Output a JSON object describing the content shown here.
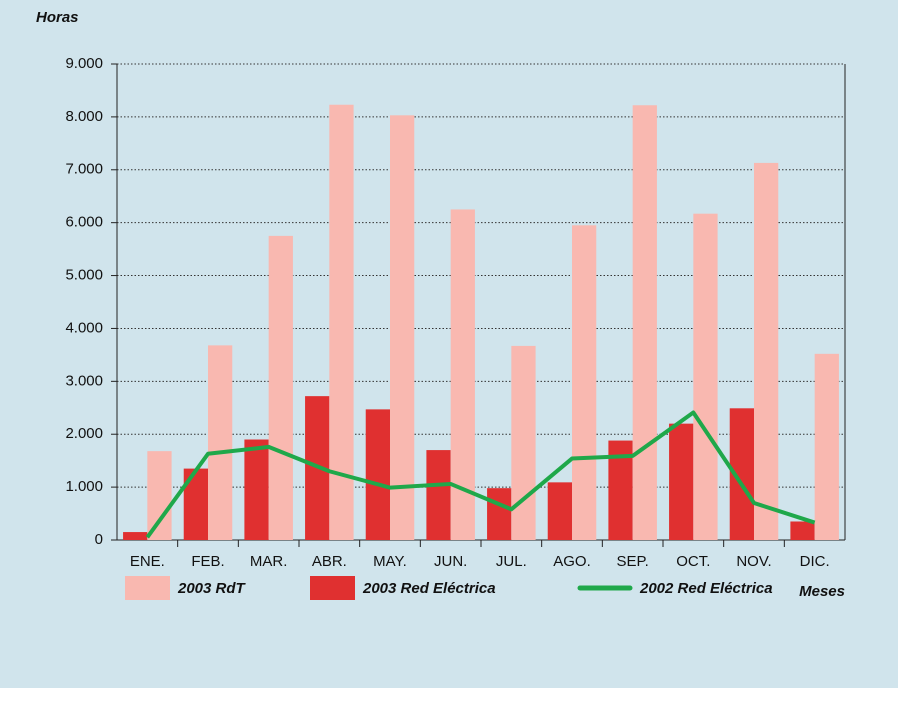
{
  "chart_data": {
    "type": "bar_line",
    "y_label": "Horas",
    "x_label": "Meses",
    "categories": [
      "ENE.",
      "FEB.",
      "MAR.",
      "ABR.",
      "MAY.",
      "JUN.",
      "JUL.",
      "AGO.",
      "SEP.",
      "OCT.",
      "NOV.",
      "DIC."
    ],
    "series": [
      {
        "name": "2003 Red Eléctrica",
        "color": "#e03030",
        "kind": "bar",
        "values": [
          150,
          1350,
          1900,
          2720,
          2470,
          1700,
          980,
          1090,
          1880,
          2200,
          2490,
          350
        ]
      },
      {
        "name": "2003 RdT",
        "color": "#f9b8b0",
        "kind": "bar",
        "values": [
          1680,
          3680,
          5750,
          8230,
          8030,
          6250,
          3670,
          5950,
          8220,
          6170,
          7130,
          3520
        ]
      },
      {
        "name": "2002 Red Eléctrica",
        "color": "#1fa84a",
        "kind": "line",
        "values": [
          50,
          1630,
          1760,
          1300,
          990,
          1060,
          580,
          1540,
          1590,
          2410,
          700,
          330
        ]
      }
    ],
    "ylim": [
      0,
      9000
    ],
    "yticks": [
      0,
      {
        "value": 1000,
        "label": "1.000"
      },
      {
        "value": 2000,
        "label": "2.000"
      },
      {
        "value": 3000,
        "label": "3.000"
      },
      {
        "value": 4000,
        "label": "4.000"
      },
      {
        "value": 5000,
        "label": "5.000"
      },
      {
        "value": 6000,
        "label": "6.000"
      },
      {
        "value": 7000,
        "label": "7.000"
      },
      {
        "value": 8000,
        "label": "8.000"
      },
      {
        "value": 9000,
        "label": "9.000"
      }
    ],
    "grid": true
  }
}
